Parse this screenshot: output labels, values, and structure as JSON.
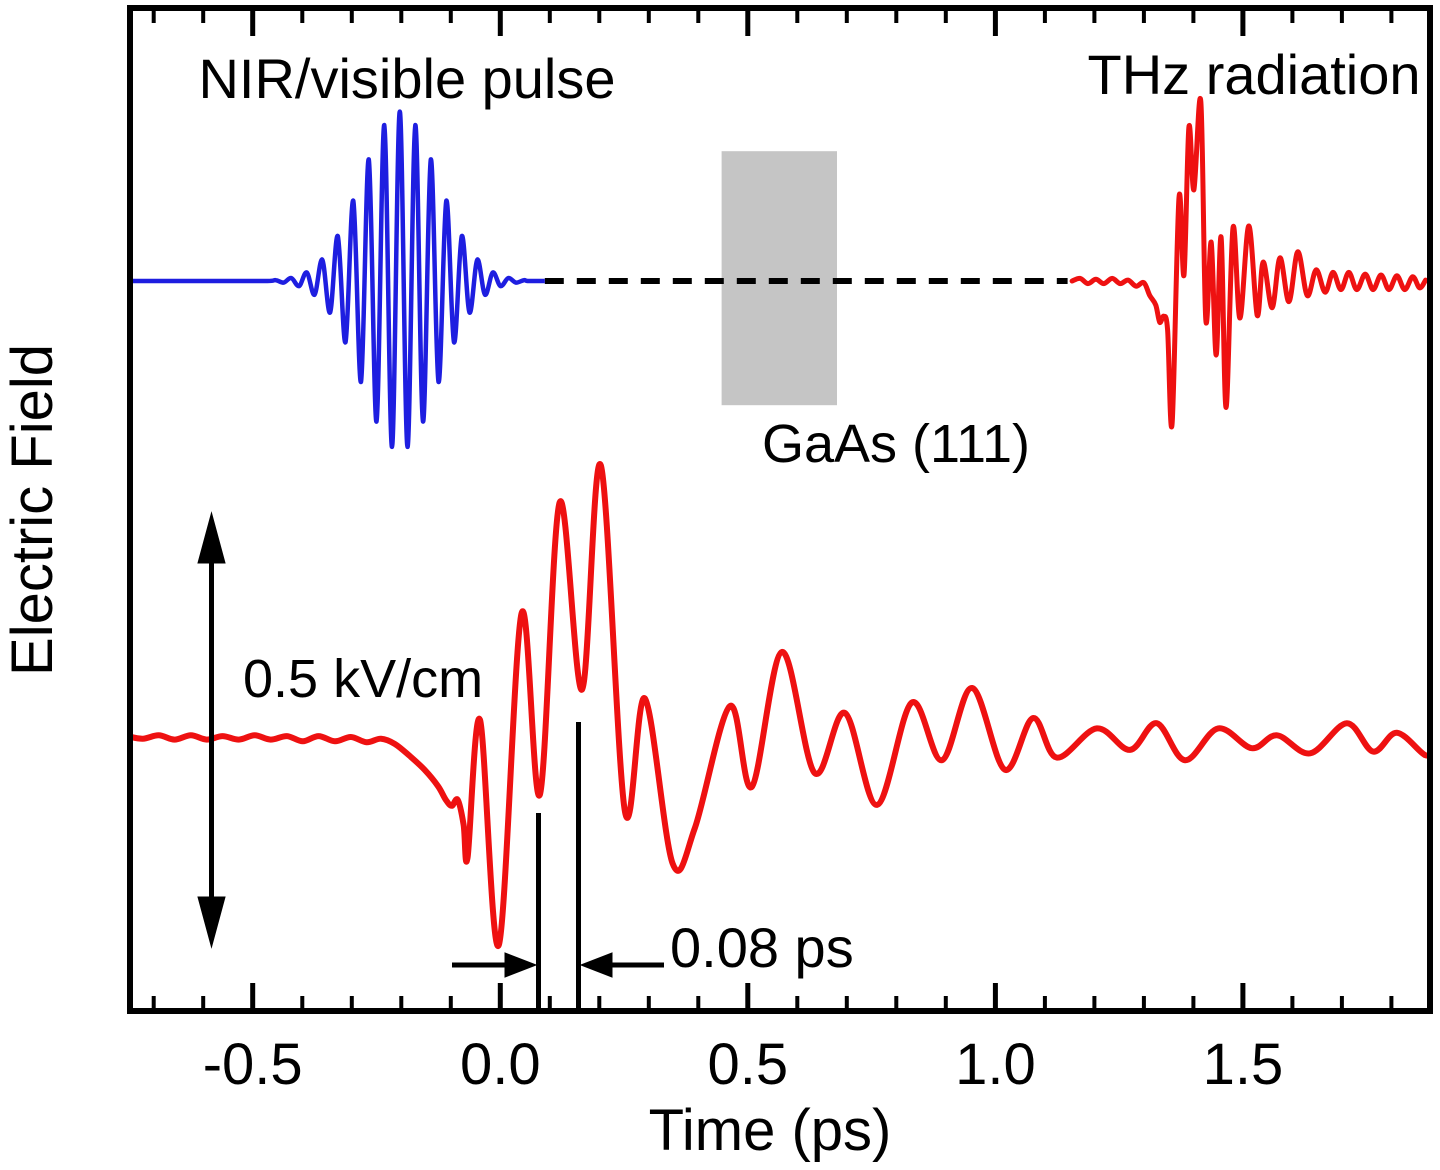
{
  "figure": {
    "labels": {
      "nir_pulse": "NIR/visible pulse",
      "thz_radiation": "THz radiation",
      "sample": "GaAs (111)",
      "field_scale": "0.5 kV/cm",
      "time_delta": "0.08 ps",
      "xlabel": "Time (ps)",
      "ylabel": "Electric Field"
    },
    "colors": {
      "nir_trace": "#1e1ee0",
      "thz_trace": "#ee1111",
      "axis": "#000000",
      "sample_fill": "#c5c5c5",
      "background": "#ffffff"
    }
  },
  "chart_data": {
    "type": "line",
    "title": "",
    "xlabel": "Time (ps)",
    "ylabel": "Electric Field",
    "xlim": [
      -0.754,
      1.884
    ],
    "x_major_ticks": [
      -0.5,
      0.0,
      0.5,
      1.0,
      1.5
    ],
    "x_major_labels": [
      "-0.5",
      "0.0",
      "0.5",
      "1.0",
      "1.5"
    ],
    "x_minor_step": 0.1,
    "x_minor_range": [
      -0.7,
      1.8
    ],
    "grid": false,
    "legend": false,
    "field_scale_annotation_kvcm": 0.5,
    "time_delta_annotation_ps": 0.08,
    "sample_box": {
      "label": "GaAs (111)",
      "t_range": [
        0.447,
        0.68
      ],
      "y_frac_range": [
        0.145,
        0.397
      ]
    },
    "series": [
      {
        "name": "nir_visible_pulse",
        "color": "#1e1ee0",
        "style": "solid",
        "baseline_frac": 0.2738,
        "model": "wave_packet",
        "center_ps": -0.203,
        "sigma_ps": 0.0768,
        "period_ps": 0.0313,
        "amplitude_kvcm": 0.197,
        "t_start": -0.754,
        "t_end": 0.09
      },
      {
        "name": "propagation_path",
        "color": "#000000",
        "style": "dashed",
        "baseline_frac": 0.2738,
        "points": [
          [
            0.09,
            0.0
          ],
          [
            1.146,
            0.0
          ]
        ]
      },
      {
        "name": "thz_emitted",
        "color": "#ee1111",
        "style": "solid",
        "baseline_frac": 0.2738,
        "points": [
          [
            1.155,
            0.0
          ],
          [
            1.171,
            0.003
          ],
          [
            1.187,
            -0.003
          ],
          [
            1.203,
            0.002
          ],
          [
            1.219,
            -0.003
          ],
          [
            1.236,
            0.003
          ],
          [
            1.252,
            -0.003
          ],
          [
            1.268,
            0.001
          ],
          [
            1.284,
            -0.006
          ],
          [
            1.3,
            -0.002
          ],
          [
            1.312,
            -0.017
          ],
          [
            1.324,
            -0.028
          ],
          [
            1.332,
            -0.048
          ],
          [
            1.34,
            -0.041
          ],
          [
            1.348,
            -0.057
          ],
          [
            1.357,
            -0.166
          ],
          [
            1.371,
            0.097
          ],
          [
            1.381,
            0.007
          ],
          [
            1.391,
            0.179
          ],
          [
            1.401,
            0.106
          ],
          [
            1.415,
            0.209
          ],
          [
            1.425,
            -0.045
          ],
          [
            1.436,
            0.045
          ],
          [
            1.446,
            -0.086
          ],
          [
            1.456,
            0.051
          ],
          [
            1.466,
            -0.147
          ],
          [
            1.48,
            0.062
          ],
          [
            1.494,
            -0.043
          ],
          [
            1.512,
            0.064
          ],
          [
            1.529,
            -0.04
          ],
          [
            1.541,
            0.022
          ],
          [
            1.559,
            -0.031
          ],
          [
            1.575,
            0.027
          ],
          [
            1.593,
            -0.024
          ],
          [
            1.611,
            0.034
          ],
          [
            1.63,
            -0.017
          ],
          [
            1.648,
            0.013
          ],
          [
            1.666,
            -0.013
          ],
          [
            1.682,
            0.01
          ],
          [
            1.698,
            -0.01
          ],
          [
            1.714,
            0.01
          ],
          [
            1.73,
            -0.01
          ],
          [
            1.747,
            0.008
          ],
          [
            1.763,
            -0.01
          ],
          [
            1.779,
            0.007
          ],
          [
            1.795,
            -0.01
          ],
          [
            1.811,
            0.006
          ],
          [
            1.827,
            -0.01
          ],
          [
            1.843,
            0.005
          ],
          [
            1.857,
            -0.008
          ],
          [
            1.869,
            0.001
          ]
        ]
      },
      {
        "name": "thz_detected_main",
        "color": "#ee1111",
        "style": "solid",
        "baseline_frac": 0.7262,
        "points": [
          [
            -0.754,
            0.001
          ],
          [
            -0.722,
            -0.002
          ],
          [
            -0.69,
            0.002
          ],
          [
            -0.658,
            -0.003
          ],
          [
            -0.625,
            0.002
          ],
          [
            -0.593,
            -0.003
          ],
          [
            -0.561,
            0.001
          ],
          [
            -0.528,
            -0.003
          ],
          [
            -0.496,
            0.002
          ],
          [
            -0.464,
            -0.003
          ],
          [
            -0.431,
            0.001
          ],
          [
            -0.399,
            -0.005
          ],
          [
            -0.367,
            0.001
          ],
          [
            -0.334,
            -0.005
          ],
          [
            -0.302,
            0.0
          ],
          [
            -0.27,
            -0.006
          ],
          [
            -0.241,
            -0.002
          ],
          [
            -0.213,
            -0.008
          ],
          [
            -0.183,
            -0.022
          ],
          [
            -0.153,
            -0.038
          ],
          [
            -0.126,
            -0.057
          ],
          [
            -0.11,
            -0.073
          ],
          [
            -0.098,
            -0.08
          ],
          [
            -0.086,
            -0.073
          ],
          [
            -0.074,
            -0.102
          ],
          [
            -0.066,
            -0.14
          ],
          [
            -0.041,
            0.02
          ],
          [
            -0.003,
            -0.242
          ],
          [
            0.043,
            0.144
          ],
          [
            0.08,
            -0.067
          ],
          [
            0.12,
            0.273
          ],
          [
            0.165,
            0.055
          ],
          [
            0.203,
            0.316
          ],
          [
            0.252,
            -0.087
          ],
          [
            0.292,
            0.045
          ],
          [
            0.348,
            -0.147
          ],
          [
            0.393,
            -0.106
          ],
          [
            0.464,
            0.036
          ],
          [
            0.508,
            -0.058
          ],
          [
            0.569,
            0.099
          ],
          [
            0.635,
            -0.042
          ],
          [
            0.696,
            0.028
          ],
          [
            0.761,
            -0.079
          ],
          [
            0.831,
            0.04
          ],
          [
            0.892,
            -0.027
          ],
          [
            0.953,
            0.057
          ],
          [
            1.019,
            -0.038
          ],
          [
            1.076,
            0.022
          ],
          [
            1.124,
            -0.024
          ],
          [
            1.205,
            0.01
          ],
          [
            1.272,
            -0.015
          ],
          [
            1.326,
            0.016
          ],
          [
            1.383,
            -0.027
          ],
          [
            1.45,
            0.01
          ],
          [
            1.518,
            -0.013
          ],
          [
            1.569,
            0.002
          ],
          [
            1.636,
            -0.019
          ],
          [
            1.71,
            0.016
          ],
          [
            1.763,
            -0.017
          ],
          [
            1.811,
            0.005
          ],
          [
            1.868,
            -0.021
          ],
          [
            1.884,
            -0.013
          ]
        ]
      }
    ]
  }
}
